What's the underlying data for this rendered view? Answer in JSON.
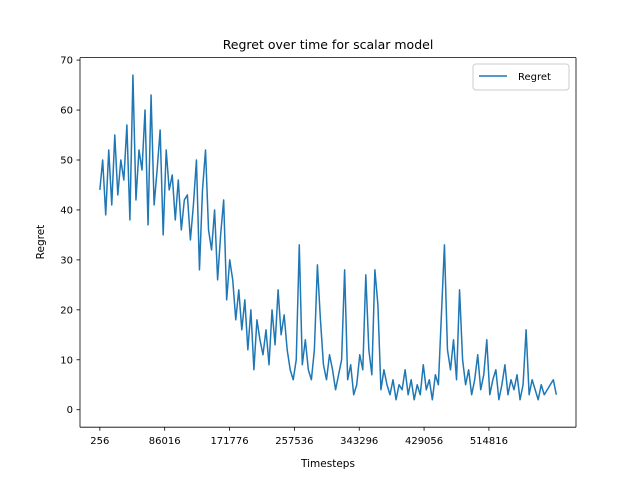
{
  "chart_data": {
    "type": "line",
    "title": "Regret over time for scalar model",
    "xlabel": "Timesteps",
    "ylabel": "Regret",
    "xlim": [
      -26000,
      630000
    ],
    "ylim": [
      -3.5,
      70.5
    ],
    "x_ticks": [
      256,
      86016,
      171776,
      257536,
      343296,
      429056,
      514816
    ],
    "x_tick_labels": [
      "256",
      "86016",
      "171776",
      "257536",
      "343296",
      "429056",
      "514816"
    ],
    "y_ticks": [
      0,
      10,
      20,
      30,
      40,
      50,
      60,
      70
    ],
    "y_tick_labels": [
      "0",
      "10",
      "20",
      "30",
      "40",
      "50",
      "60",
      "70"
    ],
    "grid": false,
    "legend_position": "top-right",
    "series": [
      {
        "name": "Regret",
        "color": "#1f77b4",
        "x": [
          256,
          4000,
          8000,
          12000,
          16000,
          20000,
          24000,
          28000,
          32000,
          36000,
          40000,
          44000,
          48000,
          52000,
          56000,
          60000,
          64000,
          68000,
          72000,
          76000,
          80000,
          84000,
          88000,
          92000,
          96000,
          100000,
          104000,
          108000,
          112000,
          116000,
          120000,
          124000,
          128000,
          132000,
          136000,
          140000,
          144000,
          148000,
          152000,
          156000,
          160000,
          164000,
          168000,
          172000,
          176000,
          180000,
          184000,
          188000,
          192000,
          196000,
          200000,
          204000,
          208000,
          212000,
          216000,
          220000,
          224000,
          228000,
          232000,
          236000,
          240000,
          244000,
          248000,
          252000,
          256000,
          260000,
          264000,
          268000,
          272000,
          276000,
          280000,
          284000,
          288000,
          292000,
          296000,
          300000,
          304000,
          308000,
          312000,
          316000,
          320000,
          324000,
          328000,
          332000,
          336000,
          340000,
          344000,
          348000,
          352000,
          356000,
          360000,
          364000,
          368000,
          372000,
          376000,
          380000,
          384000,
          388000,
          392000,
          396000,
          400000,
          404000,
          408000,
          412000,
          416000,
          420000,
          424000,
          428000,
          432000,
          436000,
          440000,
          444000,
          448000,
          452000,
          456000,
          460000,
          464000,
          468000,
          472000,
          476000,
          480000,
          484000,
          488000,
          492000,
          496000,
          500000,
          504000,
          508000,
          512000,
          516000,
          520000,
          524000,
          528000,
          532000,
          536000,
          540000,
          544000,
          548000,
          552000,
          556000,
          560000,
          564000,
          568000,
          572000,
          576000,
          580000,
          584000,
          588000,
          592000,
          596000,
          600000,
          604000
        ],
        "values": [
          44,
          50,
          39,
          52,
          41,
          55,
          43,
          50,
          46,
          57,
          38,
          67,
          42,
          52,
          48,
          60,
          37,
          63,
          41,
          48,
          56,
          35,
          52,
          44,
          47,
          38,
          46,
          36,
          42,
          43,
          34,
          41,
          50,
          28,
          44,
          52,
          36,
          32,
          40,
          26,
          35,
          42,
          22,
          30,
          26,
          18,
          24,
          16,
          22,
          12,
          20,
          8,
          18,
          14,
          11,
          16,
          9,
          20,
          13,
          24,
          15,
          19,
          12,
          8,
          6,
          10,
          33,
          9,
          14,
          8,
          6,
          12,
          29,
          18,
          9,
          6,
          11,
          8,
          4,
          7,
          10,
          28,
          6,
          9,
          3,
          5,
          11,
          8,
          27,
          12,
          7,
          28,
          21,
          4,
          8,
          5,
          3,
          6,
          2,
          5,
          4,
          8,
          3,
          6,
          2,
          5,
          3,
          9,
          4,
          6,
          2,
          7,
          5,
          19,
          33,
          12,
          8,
          14,
          6,
          24,
          10,
          5,
          8,
          3,
          6,
          11,
          4,
          7,
          14,
          3,
          6,
          8,
          2,
          5,
          9,
          3,
          6,
          4,
          7,
          2,
          5,
          16,
          3,
          6,
          4,
          2,
          5,
          3,
          4,
          5,
          6,
          3
        ]
      }
    ]
  },
  "legend": {
    "label": "Regret",
    "color": "#1f77b4"
  }
}
